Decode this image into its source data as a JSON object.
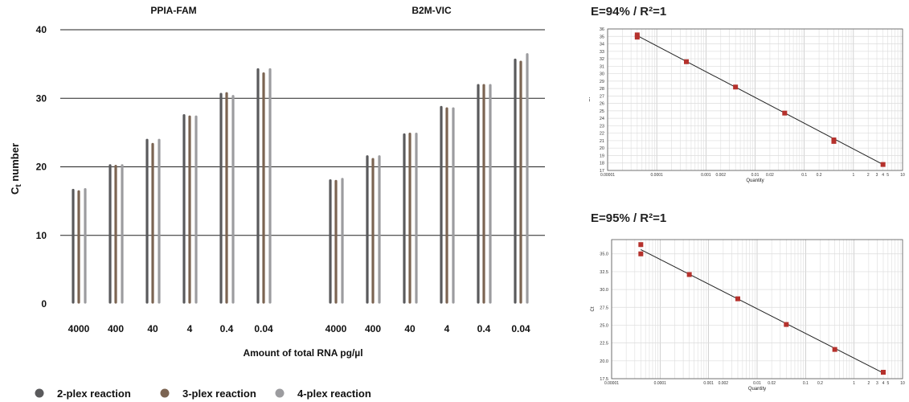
{
  "chart_data": [
    {
      "type": "bar",
      "ylabel_main": "C",
      "ylabel_sub": "t",
      "ylabel_rest": " number",
      "xlabel": "Amount of total RNA pg/µl",
      "ylim": [
        0,
        40
      ],
      "yticks": [
        "0",
        "10",
        "20",
        "30",
        "40"
      ],
      "grid": true,
      "legend_position": "bottom-left",
      "groups": [
        {
          "name": "PPIA-FAM",
          "categories": [
            "4000",
            "400",
            "40",
            "4",
            "0.4",
            "0.04"
          ],
          "series": [
            {
              "name": "2-plex reaction",
              "color": "#5a5a5c",
              "values": [
                16.6,
                20.2,
                23.9,
                27.5,
                30.6,
                34.2
              ]
            },
            {
              "name": "3-plex reaction",
              "color": "#7b6452",
              "values": [
                16.4,
                20.1,
                23.3,
                27.3,
                30.7,
                33.6
              ]
            },
            {
              "name": "4-plex reaction",
              "color": "#9c9c9f",
              "values": [
                16.7,
                20.2,
                23.9,
                27.3,
                30.3,
                34.2
              ]
            }
          ]
        },
        {
          "name": "B2M-VIC",
          "categories": [
            "4000",
            "400",
            "40",
            "4",
            "0.4",
            "0.04"
          ],
          "series": [
            {
              "name": "2-plex reaction",
              "color": "#5a5a5c",
              "values": [
                18.0,
                21.5,
                24.7,
                28.7,
                31.9,
                35.6
              ]
            },
            {
              "name": "3-plex reaction",
              "color": "#7b6452",
              "values": [
                17.9,
                21.1,
                24.8,
                28.5,
                31.9,
                35.3
              ]
            },
            {
              "name": "4-plex reaction",
              "color": "#9c9c9f",
              "values": [
                18.2,
                21.5,
                24.8,
                28.5,
                31.9,
                36.4
              ]
            }
          ]
        }
      ],
      "legend": [
        {
          "label": "2-plex reaction",
          "color": "#5a5a5c"
        },
        {
          "label": "3-plex reaction",
          "color": "#7b6452"
        },
        {
          "label": "4-plex reaction",
          "color": "#9c9c9f"
        }
      ]
    },
    {
      "type": "scatter",
      "title": "E=94% / R²=1",
      "xlabel": "Quantity",
      "ylabel": "Ct",
      "xscale": "log",
      "xlim": [
        1e-05,
        10
      ],
      "ylim": [
        17,
        36
      ],
      "yticks": [
        17,
        18,
        19,
        20,
        21,
        22,
        23,
        24,
        25,
        26,
        27,
        28,
        29,
        30,
        31,
        32,
        33,
        34,
        35,
        36
      ],
      "xticks": [
        {
          "v": 1e-05,
          "label": "0.00001"
        },
        {
          "v": 0.0001,
          "label": "0.0001"
        },
        {
          "v": 0.001,
          "label": "0.001"
        },
        {
          "v": 0.002,
          "label": "0.002"
        },
        {
          "v": 0.01,
          "label": "0.01"
        },
        {
          "v": 0.02,
          "label": "0.02"
        },
        {
          "v": 0.1,
          "label": "0.1"
        },
        {
          "v": 0.2,
          "label": "0.2"
        },
        {
          "v": 1,
          "label": "1"
        },
        {
          "v": 2,
          "label": "2"
        },
        {
          "v": 3,
          "label": "3"
        },
        {
          "v": 4,
          "label": "4"
        },
        {
          "v": 5,
          "label": "5"
        },
        {
          "v": 10,
          "label": "10"
        }
      ],
      "grid": true,
      "marker_color": "#b5312c",
      "points": [
        {
          "x": 4e-05,
          "y": 35.2
        },
        {
          "x": 4e-05,
          "y": 34.9
        },
        {
          "x": 0.0004,
          "y": 31.6
        },
        {
          "x": 0.004,
          "y": 28.2
        },
        {
          "x": 0.04,
          "y": 24.7
        },
        {
          "x": 0.4,
          "y": 21.1
        },
        {
          "x": 0.4,
          "y": 20.9
        },
        {
          "x": 4,
          "y": 17.8
        }
      ],
      "fit_line": [
        {
          "x": 4e-05,
          "y": 35.1
        },
        {
          "x": 4,
          "y": 17.8
        }
      ]
    },
    {
      "type": "scatter",
      "title": "E=95% / R²=1",
      "xlabel": "Quantity",
      "ylabel": "Ct",
      "xscale": "log",
      "xlim": [
        1e-05,
        10
      ],
      "ylim": [
        17.5,
        37
      ],
      "yticks": [
        {
          "v": 17.5,
          "label": "17.5"
        },
        {
          "v": 20.0,
          "label": "20.0"
        },
        {
          "v": 22.5,
          "label": "22.5"
        },
        {
          "v": 25.0,
          "label": "25.0"
        },
        {
          "v": 27.5,
          "label": "27.5"
        },
        {
          "v": 30.0,
          "label": "30.0"
        },
        {
          "v": 32.5,
          "label": "32.5"
        },
        {
          "v": 35.0,
          "label": "35.0"
        }
      ],
      "xticks": [
        {
          "v": 1e-05,
          "label": "0.00001"
        },
        {
          "v": 0.0001,
          "label": "0.0001"
        },
        {
          "v": 0.001,
          "label": "0.001"
        },
        {
          "v": 0.002,
          "label": "0.002"
        },
        {
          "v": 0.01,
          "label": "0.01"
        },
        {
          "v": 0.02,
          "label": "0.02"
        },
        {
          "v": 0.1,
          "label": "0.1"
        },
        {
          "v": 0.2,
          "label": "0.2"
        },
        {
          "v": 1,
          "label": "1"
        },
        {
          "v": 2,
          "label": "2"
        },
        {
          "v": 3,
          "label": "3"
        },
        {
          "v": 4,
          "label": "4"
        },
        {
          "v": 5,
          "label": "5"
        },
        {
          "v": 10,
          "label": "10"
        }
      ],
      "grid": true,
      "marker_color": "#b5312c",
      "points": [
        {
          "x": 4e-05,
          "y": 36.3
        },
        {
          "x": 4e-05,
          "y": 35.0
        },
        {
          "x": 0.0004,
          "y": 32.1
        },
        {
          "x": 0.004,
          "y": 28.7
        },
        {
          "x": 0.04,
          "y": 25.1
        },
        {
          "x": 0.4,
          "y": 21.6
        },
        {
          "x": 4,
          "y": 18.4
        }
      ],
      "fit_line": [
        {
          "x": 4e-05,
          "y": 35.6
        },
        {
          "x": 4,
          "y": 18.3
        }
      ]
    }
  ]
}
